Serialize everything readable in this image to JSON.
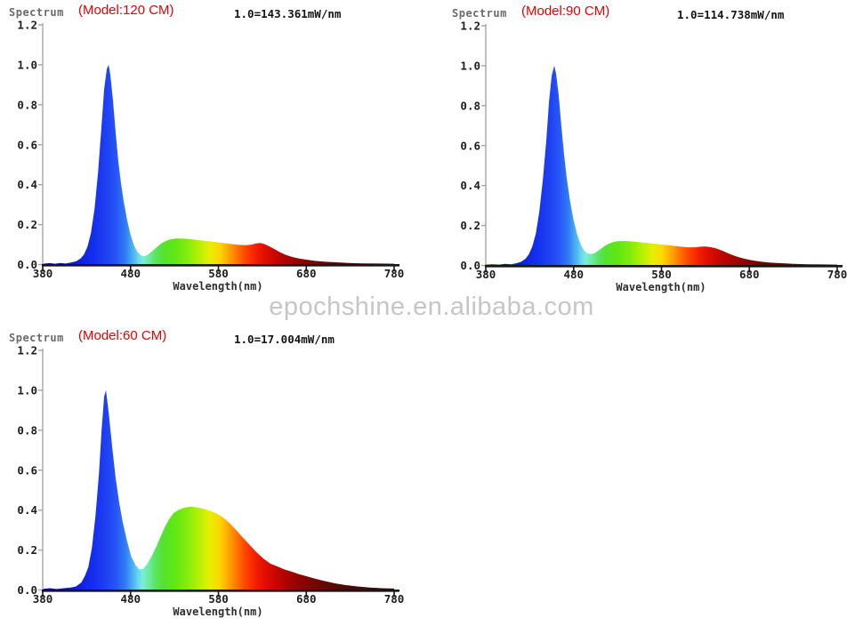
{
  "watermark_text": "epochshine.en.alibaba.com",
  "colors": {
    "background": "#ffffff",
    "model_red": "#e60000",
    "tick_text": "#1d1d1d",
    "corner_label_text": "#6a6a6a",
    "scale_text": "#141414",
    "xlabel_text": "#2e2e2e",
    "axis_y": "#a6a6a6",
    "axis_x": "#161616",
    "watermark": "#c6c6c6"
  },
  "spectrum_gradient": [
    [
      380,
      "#0a0a8c"
    ],
    [
      400,
      "#0c12b4"
    ],
    [
      420,
      "#0e1fd8"
    ],
    [
      438,
      "#142fee"
    ],
    [
      452,
      "#1e40f2"
    ],
    [
      464,
      "#2757f6"
    ],
    [
      474,
      "#2f7cf6"
    ],
    [
      482,
      "#49aef2"
    ],
    [
      489,
      "#68d9ee"
    ],
    [
      494,
      "#7beeda"
    ],
    [
      500,
      "#6feba6"
    ],
    [
      507,
      "#5ce56c"
    ],
    [
      516,
      "#53e232"
    ],
    [
      530,
      "#5ee714"
    ],
    [
      544,
      "#82ec0b"
    ],
    [
      557,
      "#b2f004"
    ],
    [
      570,
      "#e6ef00"
    ],
    [
      581,
      "#fcd700"
    ],
    [
      591,
      "#ffa800"
    ],
    [
      601,
      "#ff7400"
    ],
    [
      611,
      "#fe4300"
    ],
    [
      621,
      "#f42300"
    ],
    [
      631,
      "#e41000"
    ],
    [
      644,
      "#c90700"
    ],
    [
      657,
      "#ae0300"
    ],
    [
      671,
      "#930300"
    ],
    [
      687,
      "#7a0502"
    ],
    [
      704,
      "#630704"
    ],
    [
      724,
      "#4e0905"
    ],
    [
      748,
      "#3c0a06"
    ],
    [
      780,
      "#2d0a06"
    ]
  ],
  "chart_data": [
    {
      "id": "spectrum-120cm",
      "type": "area",
      "corner_label": "Spectrum",
      "model_label": "(Model:120 CM)",
      "scale_label": "1.0=143.361mW/nm",
      "xlabel": "Wavelength(nm)",
      "x_range": [
        380,
        780
      ],
      "y_range": [
        0,
        1.2
      ],
      "x_ticks": [
        380,
        480,
        580,
        680,
        780
      ],
      "y_ticks": [
        "0.0",
        "0.2",
        "0.4",
        "0.6",
        "0.8",
        "1.0",
        "1.2"
      ],
      "peak_wavelength_nm": 455,
      "points": [
        [
          380,
          0.004
        ],
        [
          388,
          0.007
        ],
        [
          394,
          0.004
        ],
        [
          400,
          0.008
        ],
        [
          406,
          0.005
        ],
        [
          412,
          0.01
        ],
        [
          418,
          0.016
        ],
        [
          423,
          0.03
        ],
        [
          427,
          0.05
        ],
        [
          431,
          0.09
        ],
        [
          435,
          0.16
        ],
        [
          439,
          0.28
        ],
        [
          443,
          0.46
        ],
        [
          447,
          0.7
        ],
        [
          450,
          0.88
        ],
        [
          453,
          0.98
        ],
        [
          455,
          1.0
        ],
        [
          457,
          0.95
        ],
        [
          460,
          0.82
        ],
        [
          463,
          0.66
        ],
        [
          466,
          0.52
        ],
        [
          469,
          0.41
        ],
        [
          472,
          0.32
        ],
        [
          476,
          0.225
        ],
        [
          480,
          0.148
        ],
        [
          484,
          0.095
        ],
        [
          488,
          0.062
        ],
        [
          492,
          0.046
        ],
        [
          496,
          0.042
        ],
        [
          500,
          0.05
        ],
        [
          505,
          0.068
        ],
        [
          510,
          0.088
        ],
        [
          515,
          0.106
        ],
        [
          520,
          0.118
        ],
        [
          525,
          0.126
        ],
        [
          531,
          0.13
        ],
        [
          540,
          0.13
        ],
        [
          549,
          0.127
        ],
        [
          558,
          0.122
        ],
        [
          567,
          0.118
        ],
        [
          576,
          0.113
        ],
        [
          585,
          0.108
        ],
        [
          594,
          0.103
        ],
        [
          602,
          0.099
        ],
        [
          610,
          0.097
        ],
        [
          617,
          0.099
        ],
        [
          623,
          0.106
        ],
        [
          628,
          0.108
        ],
        [
          633,
          0.101
        ],
        [
          638,
          0.091
        ],
        [
          644,
          0.077
        ],
        [
          650,
          0.062
        ],
        [
          657,
          0.048
        ],
        [
          664,
          0.038
        ],
        [
          672,
          0.03
        ],
        [
          681,
          0.024
        ],
        [
          691,
          0.018
        ],
        [
          702,
          0.014
        ],
        [
          714,
          0.011
        ],
        [
          728,
          0.008
        ],
        [
          744,
          0.006
        ],
        [
          762,
          0.005
        ],
        [
          780,
          0.004
        ]
      ]
    },
    {
      "id": "spectrum-90cm",
      "type": "area",
      "corner_label": "Spectrum",
      "model_label": "(Model:90 CM)",
      "scale_label": "1.0=114.738mW/nm",
      "xlabel": "Wavelength(nm)",
      "x_range": [
        380,
        780
      ],
      "y_range": [
        0,
        1.2
      ],
      "x_ticks": [
        380,
        480,
        580,
        680,
        780
      ],
      "y_ticks": [
        "0.0",
        "0.2",
        "0.4",
        "0.6",
        "0.8",
        "1.0",
        "1.2"
      ],
      "peak_wavelength_nm": 458,
      "points": [
        [
          380,
          0.004
        ],
        [
          388,
          0.006
        ],
        [
          395,
          0.004
        ],
        [
          402,
          0.008
        ],
        [
          409,
          0.006
        ],
        [
          415,
          0.011
        ],
        [
          420,
          0.018
        ],
        [
          425,
          0.032
        ],
        [
          429,
          0.055
        ],
        [
          433,
          0.095
        ],
        [
          437,
          0.16
        ],
        [
          441,
          0.27
        ],
        [
          445,
          0.43
        ],
        [
          449,
          0.63
        ],
        [
          452,
          0.82
        ],
        [
          455,
          0.95
        ],
        [
          458,
          1.0
        ],
        [
          460,
          0.96
        ],
        [
          463,
          0.85
        ],
        [
          466,
          0.7
        ],
        [
          469,
          0.56
        ],
        [
          472,
          0.44
        ],
        [
          476,
          0.32
        ],
        [
          480,
          0.225
        ],
        [
          484,
          0.155
        ],
        [
          488,
          0.105
        ],
        [
          492,
          0.074
        ],
        [
          496,
          0.06
        ],
        [
          500,
          0.057
        ],
        [
          505,
          0.064
        ],
        [
          510,
          0.08
        ],
        [
          515,
          0.096
        ],
        [
          520,
          0.108
        ],
        [
          525,
          0.117
        ],
        [
          531,
          0.122
        ],
        [
          540,
          0.122
        ],
        [
          549,
          0.119
        ],
        [
          558,
          0.115
        ],
        [
          567,
          0.111
        ],
        [
          576,
          0.107
        ],
        [
          585,
          0.103
        ],
        [
          594,
          0.098
        ],
        [
          602,
          0.094
        ],
        [
          610,
          0.091
        ],
        [
          618,
          0.091
        ],
        [
          625,
          0.094
        ],
        [
          631,
          0.095
        ],
        [
          637,
          0.091
        ],
        [
          643,
          0.084
        ],
        [
          650,
          0.072
        ],
        [
          658,
          0.057
        ],
        [
          666,
          0.044
        ],
        [
          674,
          0.034
        ],
        [
          683,
          0.026
        ],
        [
          693,
          0.019
        ],
        [
          704,
          0.014
        ],
        [
          716,
          0.011
        ],
        [
          730,
          0.008
        ],
        [
          746,
          0.006
        ],
        [
          762,
          0.005
        ],
        [
          780,
          0.004
        ]
      ]
    },
    {
      "id": "spectrum-60cm",
      "type": "area",
      "corner_label": "Spectrum",
      "model_label": "(Model:60 CM)",
      "scale_label": "1.0=17.004mW/nm",
      "xlabel": "Wavelength(nm)",
      "x_range": [
        380,
        780
      ],
      "y_range": [
        0,
        1.2
      ],
      "x_ticks": [
        380,
        480,
        580,
        680,
        780
      ],
      "y_ticks": [
        "0.0",
        "0.2",
        "0.4",
        "0.6",
        "0.8",
        "1.0",
        "1.2"
      ],
      "peak_wavelength_nm": 451,
      "points": [
        [
          380,
          0.006
        ],
        [
          388,
          0.009
        ],
        [
          396,
          0.005
        ],
        [
          404,
          0.009
        ],
        [
          412,
          0.012
        ],
        [
          418,
          0.018
        ],
        [
          424,
          0.038
        ],
        [
          428,
          0.07
        ],
        [
          432,
          0.115
        ],
        [
          436,
          0.21
        ],
        [
          440,
          0.37
        ],
        [
          444,
          0.58
        ],
        [
          447,
          0.8
        ],
        [
          450,
          0.97
        ],
        [
          452,
          1.0
        ],
        [
          455,
          0.89
        ],
        [
          459,
          0.72
        ],
        [
          463,
          0.56
        ],
        [
          467,
          0.44
        ],
        [
          471,
          0.34
        ],
        [
          476,
          0.245
        ],
        [
          481,
          0.165
        ],
        [
          486,
          0.122
        ],
        [
          490,
          0.103
        ],
        [
          494,
          0.105
        ],
        [
          499,
          0.13
        ],
        [
          504,
          0.168
        ],
        [
          509,
          0.215
        ],
        [
          514,
          0.265
        ],
        [
          519,
          0.315
        ],
        [
          524,
          0.355
        ],
        [
          529,
          0.385
        ],
        [
          535,
          0.402
        ],
        [
          541,
          0.412
        ],
        [
          548,
          0.417
        ],
        [
          555,
          0.414
        ],
        [
          563,
          0.407
        ],
        [
          571,
          0.396
        ],
        [
          578,
          0.383
        ],
        [
          585,
          0.364
        ],
        [
          592,
          0.338
        ],
        [
          599,
          0.306
        ],
        [
          607,
          0.266
        ],
        [
          615,
          0.228
        ],
        [
          623,
          0.19
        ],
        [
          631,
          0.158
        ],
        [
          639,
          0.132
        ],
        [
          647,
          0.118
        ],
        [
          655,
          0.103
        ],
        [
          663,
          0.092
        ],
        [
          671,
          0.08
        ],
        [
          680,
          0.069
        ],
        [
          690,
          0.057
        ],
        [
          700,
          0.046
        ],
        [
          712,
          0.034
        ],
        [
          724,
          0.025
        ],
        [
          738,
          0.018
        ],
        [
          752,
          0.012
        ],
        [
          766,
          0.009
        ],
        [
          780,
          0.007
        ]
      ]
    }
  ]
}
